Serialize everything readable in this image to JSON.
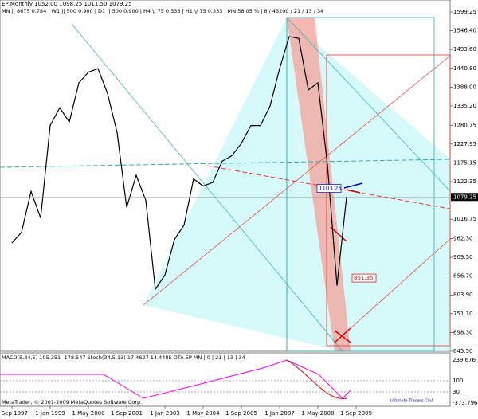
{
  "header": {
    "line1": "EP,Monthly  1052.00 1098.25 1011.50 1079.25",
    "line2": "MN || 8675   0.784 | W1 || 500   0.900 | D1 || 500   0.900 | H4 \\/ 75   0.333 | H1 \\/ 75   0.333 | MN   58.05 % | 6 / 43200 / 21 / 13 / 34"
  },
  "price_chart": {
    "categories": [
      "1 Sep 1997",
      null,
      null,
      null,
      "1 Jan 1999",
      null,
      null,
      null,
      "1 May 2000",
      null,
      null,
      null,
      "1 Sep 2001",
      null,
      null,
      null,
      "1 Jan 2003",
      null,
      null,
      null,
      "1 May 2004",
      null,
      null,
      null,
      "1 Sep 2005",
      null,
      null,
      null,
      "1 Jan 2007",
      null,
      null,
      null,
      "1 May 2008",
      null,
      null,
      null,
      "1 Sep 2009"
    ],
    "close": [
      950,
      980,
      1095,
      1020,
      1280,
      1330,
      1290,
      1400,
      1430,
      1440,
      1370,
      1260,
      1050,
      1140,
      1070,
      820,
      860,
      960,
      1000,
      1130,
      1110,
      1120,
      1180,
      1195,
      1230,
      1280,
      1280,
      1335,
      1440,
      1530,
      1525,
      1380,
      1400,
      1170,
      830,
      1079.25,
      null
    ],
    "ylim": [
      645.5,
      1599.25
    ],
    "yticks": [
      1599.25,
      {
        "value": 1546.4,
        "label": "1546.40"
      },
      {
        "value": 1493.6,
        "label": "1493.60"
      },
      {
        "value": 1440.8,
        "label": "1440.80"
      },
      {
        "value": 1388,
        "label": "1388.00"
      },
      {
        "value": 1335.2,
        "label": "1335.20"
      },
      1280.75,
      1227.95,
      1175.15,
      1122.35,
      1016.75,
      {
        "value": 962.3,
        "label": "962.30"
      },
      {
        "value": 909.5,
        "label": "909.50"
      },
      {
        "value": 856.7,
        "label": "856.70"
      },
      {
        "value": 803.9,
        "label": "803.90"
      },
      {
        "value": 751.1,
        "label": "751.10"
      },
      {
        "value": 698.3,
        "label": "698.30"
      },
      {
        "value": 645.5,
        "label": "645.50"
      }
    ],
    "current_price": 1079.25,
    "annotations": [
      {
        "text": "1103.25",
        "value": 1103.25
      },
      {
        "text": "851.35",
        "value": 851.35
      }
    ]
  },
  "indicator": {
    "title": "MACD(5,34,5) 105.351 -178.547  Stoch(34,5,13) 17.4627 14.4485  OTA EP MN | 0 | 21 | 13 | 34",
    "axis_labels": [
      "239.676",
      "100",
      "30",
      "-373.796"
    ]
  },
  "footer": {
    "copyright": "MetaTrader, © 2001-2009 MetaQuotes Software Corp.",
    "watermark": "Ultimate Traders Club"
  }
}
